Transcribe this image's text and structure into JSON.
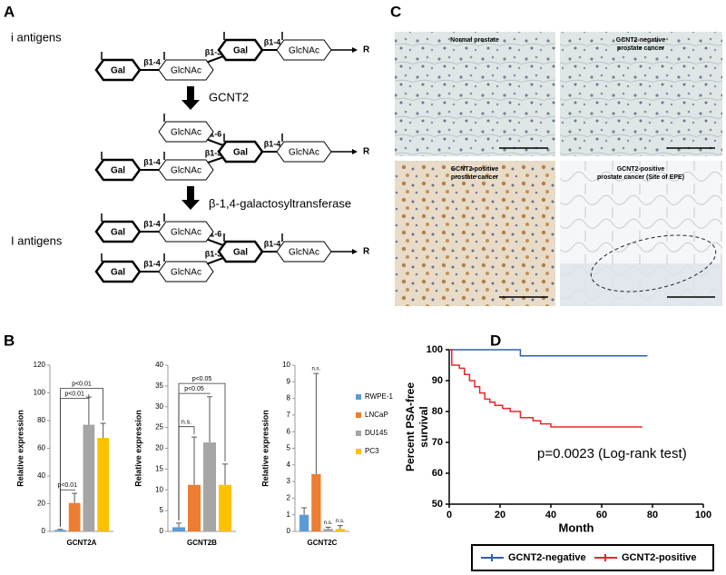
{
  "panel_labels": [
    "A",
    "B",
    "C",
    "D"
  ],
  "diagram": {
    "antigen_labels": [
      "i antigens",
      "I antigens"
    ],
    "enzymes": [
      "GCNT2",
      "β-1,4-galactosyltransferase"
    ],
    "structures": [
      {
        "nodes": [
          "Gal",
          "GlcNAc",
          "Gal",
          "GlcNAc"
        ],
        "links": [
          "β1-4",
          "β1-3",
          "β1-4"
        ],
        "end": "R"
      },
      {
        "nodes": [
          "Gal",
          "GlcNAc",
          "Gal",
          "GlcNAc",
          "GlcNAc"
        ],
        "links": [
          "β1-4",
          "β1-3",
          "β1-4",
          "β1-6"
        ],
        "end": "R"
      },
      {
        "nodes": [
          "Gal",
          "GlcNAc",
          "Gal",
          "GlcNAc",
          "Gal",
          "GlcNAc"
        ],
        "links": [
          "β1-4",
          "β1-6",
          "β1-4",
          "β1-3",
          "β1-4"
        ],
        "end": "R"
      }
    ]
  },
  "micrographs": [
    {
      "title": [
        "Normal prostate"
      ]
    },
    {
      "title": [
        "GCNT2-negative",
        "prostate cancer"
      ]
    },
    {
      "title": [
        "GCNT2-positive",
        "prostate cancer"
      ]
    },
    {
      "title": [
        "GCNT2-positive",
        "prostate cancer (Site of EPE)"
      ]
    }
  ],
  "chart_data": [
    {
      "type": "bar",
      "categories": [
        "GCNT2A"
      ],
      "ylabel": "Relative expression",
      "ylim": [
        0,
        120
      ],
      "yticks": [
        0,
        20,
        40,
        60,
        80,
        100,
        120
      ],
      "series": [
        {
          "color": "#5b9bd5",
          "values": [
            1.0
          ],
          "errors": [
            0.5
          ]
        },
        {
          "color": "#ed7d31",
          "values": [
            20.5
          ],
          "errors": [
            7
          ]
        },
        {
          "color": "#a5a5a5",
          "values": [
            77
          ],
          "errors": [
            20
          ]
        },
        {
          "color": "#ffc000",
          "values": [
            67.5
          ],
          "errors": [
            10.5
          ]
        }
      ],
      "annotations": [
        "p<0.01",
        "p<0.01",
        "p<0.01"
      ]
    },
    {
      "type": "bar",
      "categories": [
        "GCNT2B"
      ],
      "ylabel": "Relative expression",
      "ylim": [
        0,
        40
      ],
      "yticks": [
        0,
        5,
        10,
        15,
        20,
        25,
        30,
        35,
        40
      ],
      "series": [
        {
          "color": "#5b9bd5",
          "values": [
            1.0
          ],
          "errors": [
            1.0
          ]
        },
        {
          "color": "#ed7d31",
          "values": [
            11.2
          ],
          "errors": [
            11.5
          ]
        },
        {
          "color": "#a5a5a5",
          "values": [
            21.4
          ],
          "errors": [
            11
          ]
        },
        {
          "color": "#ffc000",
          "values": [
            11.2
          ],
          "errors": [
            5
          ]
        }
      ],
      "annotations": [
        "n.s.",
        "p<0.05",
        "p<0.05"
      ]
    },
    {
      "type": "bar",
      "categories": [
        "GCNT2C"
      ],
      "ylabel": "Relative expression",
      "ylim": [
        0,
        10
      ],
      "yticks": [
        0,
        1,
        2,
        3,
        4,
        5,
        6,
        7,
        8,
        9,
        10
      ],
      "legend": "right",
      "series": [
        {
          "name": "RWPE-1",
          "color": "#5b9bd5",
          "values": [
            1.0
          ],
          "errors": [
            0.42
          ]
        },
        {
          "name": "LNCaP",
          "color": "#ed7d31",
          "values": [
            3.45
          ],
          "errors": [
            6.05
          ]
        },
        {
          "name": "DU145",
          "color": "#a5a5a5",
          "values": [
            0.15
          ],
          "errors": [
            0.1
          ]
        },
        {
          "name": "PC3",
          "color": "#ffc000",
          "values": [
            0.15
          ],
          "errors": [
            0.2
          ]
        }
      ],
      "annotations": [
        "n.s.",
        "n.s.",
        "n.s."
      ]
    },
    {
      "type": "line",
      "xlabel": "Month",
      "ylabel": [
        "Percent PSA-free",
        "survival"
      ],
      "xlim": [
        0,
        100
      ],
      "xticks": [
        0,
        20,
        40,
        60,
        80,
        100
      ],
      "ylim": [
        50,
        100
      ],
      "yticks": [
        50,
        60,
        70,
        80,
        90,
        100
      ],
      "annotation": "p=0.0023 (Log-rank test)",
      "legend": "bottom",
      "series": [
        {
          "name": "GCNT2-negative",
          "color": "#2e5fb0",
          "x": [
            0,
            28,
            28,
            78
          ],
          "values": [
            100,
            100,
            98,
            98
          ]
        },
        {
          "name": "GCNT2-positive",
          "color": "#e8262b",
          "x": [
            0,
            1,
            1,
            4,
            4,
            6,
            6,
            8,
            8,
            10,
            10,
            12,
            12,
            14,
            14,
            16,
            16,
            18,
            18,
            21,
            21,
            24,
            24,
            28,
            28,
            33,
            33,
            36,
            36,
            40,
            40,
            76
          ],
          "values": [
            100,
            100,
            95,
            95,
            94,
            94,
            92,
            92,
            90,
            90,
            88,
            88,
            86,
            86,
            84,
            84,
            83,
            83,
            82,
            82,
            81,
            81,
            80,
            80,
            78,
            78,
            77,
            77,
            76,
            76,
            75,
            75
          ]
        }
      ]
    }
  ]
}
